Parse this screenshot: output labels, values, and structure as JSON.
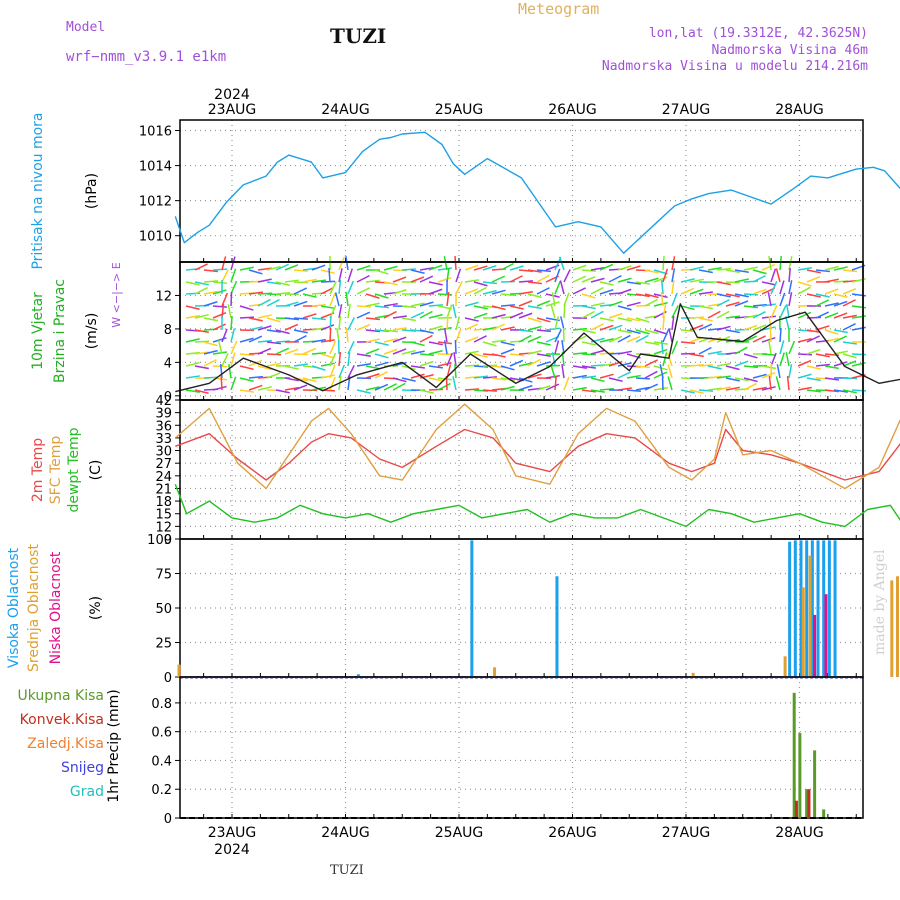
{
  "header": {
    "model_label": "Model",
    "model_name": "wrf−nmm_v3.9.1  e1km",
    "site": "TUZI",
    "title": "Meteogram",
    "coords": "lon,lat (19.3312E, 42.3625N)",
    "elevation": "Nadmorska Visina 46m",
    "model_elevation": "Nadmorska Visina u modelu 214.216m",
    "watermark": "made by Angel",
    "footer": "TUZI"
  },
  "colors": {
    "pressure": "#1ea0e6",
    "temp2m": "#e84a4a",
    "sfc": "#e0a040",
    "dewpt": "#22c022",
    "high_cloud": "#1aa0ee",
    "mid_cloud": "#e0a030",
    "low_cloud": "#e0108a",
    "total_precip": "#5a9a2a",
    "conv_precip": "#c03020",
    "frozen": "#f08030",
    "snow": "#4040e0",
    "grad": "#20c0c0"
  },
  "axes": {
    "year": "2024",
    "days": [
      "23AUG",
      "24AUG",
      "25AUG",
      "26AUG",
      "27AUG",
      "28AUG"
    ]
  },
  "chart_data": [
    {
      "type": "line",
      "panel": "pressure",
      "ylabel_main": "Pritisak na nivou mora",
      "unit": "(hPa)",
      "ylim": [
        1008.5,
        1016.6
      ],
      "yticks": [
        1010,
        1012,
        1014,
        1016
      ],
      "x_day": [
        0,
        0.08,
        0.2,
        0.3,
        0.45,
        0.6,
        0.8,
        0.9,
        1.0,
        1.2,
        1.3,
        1.5,
        1.65,
        1.8,
        1.9,
        2.0,
        2.2,
        2.35,
        2.45,
        2.55,
        2.75,
        3.05,
        3.35,
        3.55,
        3.75,
        3.95,
        4.25,
        4.4,
        4.55,
        4.7,
        4.9,
        5.25,
        5.45,
        5.6,
        5.75,
        5.85,
        6.0,
        6.15,
        6.25,
        6.4
      ],
      "y": [
        1011.1,
        1009.6,
        1010.2,
        1010.6,
        1011.9,
        1012.9,
        1013.4,
        1014.2,
        1014.6,
        1014.2,
        1013.3,
        1013.6,
        1014.8,
        1015.5,
        1015.6,
        1015.8,
        1015.9,
        1015.2,
        1014.1,
        1013.5,
        1014.4,
        1013.3,
        1010.5,
        1010.8,
        1010.5,
        1009.0,
        1010.8,
        1011.7,
        1012.1,
        1012.4,
        1012.6,
        1011.8,
        1012.7,
        1013.4,
        1013.3,
        1013.5,
        1013.8,
        1013.9,
        1013.7,
        1012.6
      ]
    },
    {
      "type": "line",
      "panel": "wind",
      "ylabel_main": "10m Vjetar",
      "ylabel_sub": "Brzina i Pravac",
      "unit": "(m/s)",
      "legend_glyphs": "W <−|−> E",
      "ylim": [
        -0.5,
        16
      ],
      "yticks": [
        0,
        4,
        8,
        12
      ],
      "x_day": [
        0,
        0.3,
        0.6,
        1.0,
        1.3,
        1.6,
        2.0,
        2.3,
        2.6,
        3.0,
        3.3,
        3.6,
        4.0,
        4.1,
        4.35,
        4.45,
        4.6,
        5.0,
        5.3,
        5.55,
        5.9,
        6.2,
        6.4
      ],
      "y": [
        0.5,
        1.5,
        4.5,
        2.5,
        0.6,
        2.5,
        4.0,
        1.0,
        5.0,
        1.5,
        3.5,
        7.5,
        3.0,
        5.0,
        4.5,
        11.0,
        7.0,
        6.5,
        9.0,
        10.0,
        3.5,
        1.5,
        2.0
      ]
    },
    {
      "type": "line",
      "panel": "temperature",
      "ylabel_main": "2m Temp",
      "ylabel_sub": "SFC Temp",
      "ylabel_sub2": "dewpt Temp",
      "unit": "(C)",
      "ylim": [
        9,
        42
      ],
      "yticks": [
        9,
        12,
        15,
        18,
        21,
        24,
        27,
        30,
        33,
        36,
        39,
        42
      ],
      "series": [
        {
          "name": "2m Temp",
          "x_day": [
            0,
            0.3,
            0.55,
            0.8,
            1.0,
            1.2,
            1.35,
            1.55,
            1.8,
            2.0,
            2.3,
            2.55,
            2.8,
            3.0,
            3.3,
            3.55,
            3.8,
            4.05,
            4.35,
            4.55,
            4.75,
            4.85,
            5.0,
            5.25,
            5.5,
            5.9,
            6.2,
            6.4
          ],
          "y": [
            31,
            34,
            28,
            23,
            27,
            32,
            34,
            33,
            28,
            26,
            31,
            35,
            33,
            27,
            25,
            31,
            34,
            33,
            27,
            25,
            27,
            35,
            30,
            29,
            27,
            23,
            25,
            32
          ]
        },
        {
          "name": "SFC Temp",
          "x_day": [
            0,
            0.3,
            0.55,
            0.8,
            1.0,
            1.2,
            1.35,
            1.55,
            1.8,
            2.0,
            2.3,
            2.55,
            2.8,
            3.0,
            3.3,
            3.55,
            3.8,
            4.05,
            4.35,
            4.55,
            4.75,
            4.85,
            5.0,
            5.25,
            5.5,
            5.9,
            6.2,
            6.4
          ],
          "y": [
            33,
            40,
            27,
            21,
            29,
            37,
            40,
            34,
            24,
            23,
            35,
            41,
            35,
            24,
            22,
            34,
            40,
            37,
            26,
            23,
            28,
            39,
            29,
            30,
            27,
            21,
            26,
            38
          ]
        },
        {
          "name": "dewpt Temp",
          "x_day": [
            0,
            0.1,
            0.3,
            0.5,
            0.7,
            0.9,
            1.1,
            1.3,
            1.5,
            1.7,
            1.9,
            2.1,
            2.3,
            2.5,
            2.7,
            2.9,
            3.1,
            3.3,
            3.5,
            3.7,
            3.9,
            4.1,
            4.3,
            4.5,
            4.7,
            4.9,
            5.1,
            5.3,
            5.5,
            5.7,
            5.9,
            6.1,
            6.3,
            6.4
          ],
          "y": [
            22,
            15,
            18,
            14,
            13,
            14,
            17,
            15,
            14,
            15,
            13,
            15,
            16,
            17,
            14,
            15,
            16,
            13,
            15,
            14,
            14,
            16,
            14,
            12,
            16,
            15,
            13,
            14,
            15,
            13,
            12,
            16,
            17,
            13
          ]
        }
      ]
    },
    {
      "type": "bar",
      "panel": "clouds",
      "ylabel_main": "Visoka Oblacnost",
      "ylabel_sub": "Srednja Oblacnost",
      "ylabel_sub2": "Niska Oblacnost",
      "unit": "(%)",
      "ylim": [
        0,
        100
      ],
      "yticks": [
        0,
        25,
        50,
        75,
        100
      ],
      "series": [
        {
          "name": "Visoka Oblacnost",
          "x_day": [
            1.6,
            2.6,
            3.35,
            5.4,
            5.45,
            5.5,
            5.55,
            5.6,
            5.65,
            5.7,
            5.75,
            5.8
          ],
          "values": [
            2,
            99,
            73,
            98,
            99,
            99,
            99,
            99,
            99,
            99,
            99,
            99
          ]
        },
        {
          "name": "Srednja Oblacnost",
          "x_day": [
            0.02,
            2.8,
            4.55,
            5.36,
            5.52,
            5.58,
            6.3,
            6.35
          ],
          "values": [
            9,
            7,
            3,
            15,
            65,
            88,
            70,
            73
          ]
        },
        {
          "name": "Niska Oblacnost",
          "x_day": [
            5.62,
            5.72
          ],
          "values": [
            45,
            60
          ]
        }
      ]
    },
    {
      "type": "bar",
      "panel": "precip",
      "ylabel_main": "1hr Precip (mm)",
      "legend": [
        "Ukupna Kisa",
        "Konvek.Kisa",
        "Zaledj.Kisa",
        "Snijeg",
        "Grad"
      ],
      "ylim": [
        0,
        0.98
      ],
      "yticks": [
        0,
        0.2,
        0.4,
        0.6,
        0.8
      ],
      "series": [
        {
          "name": "Ukupna Kisa",
          "x_day": [
            5.44,
            5.49,
            5.55,
            5.62,
            5.7
          ],
          "values": [
            0.87,
            0.59,
            0.2,
            0.47,
            0.06
          ]
        },
        {
          "name": "Konvek.Kisa",
          "x_day": [
            5.46,
            5.57
          ],
          "values": [
            0.12,
            0.2
          ]
        }
      ]
    }
  ]
}
